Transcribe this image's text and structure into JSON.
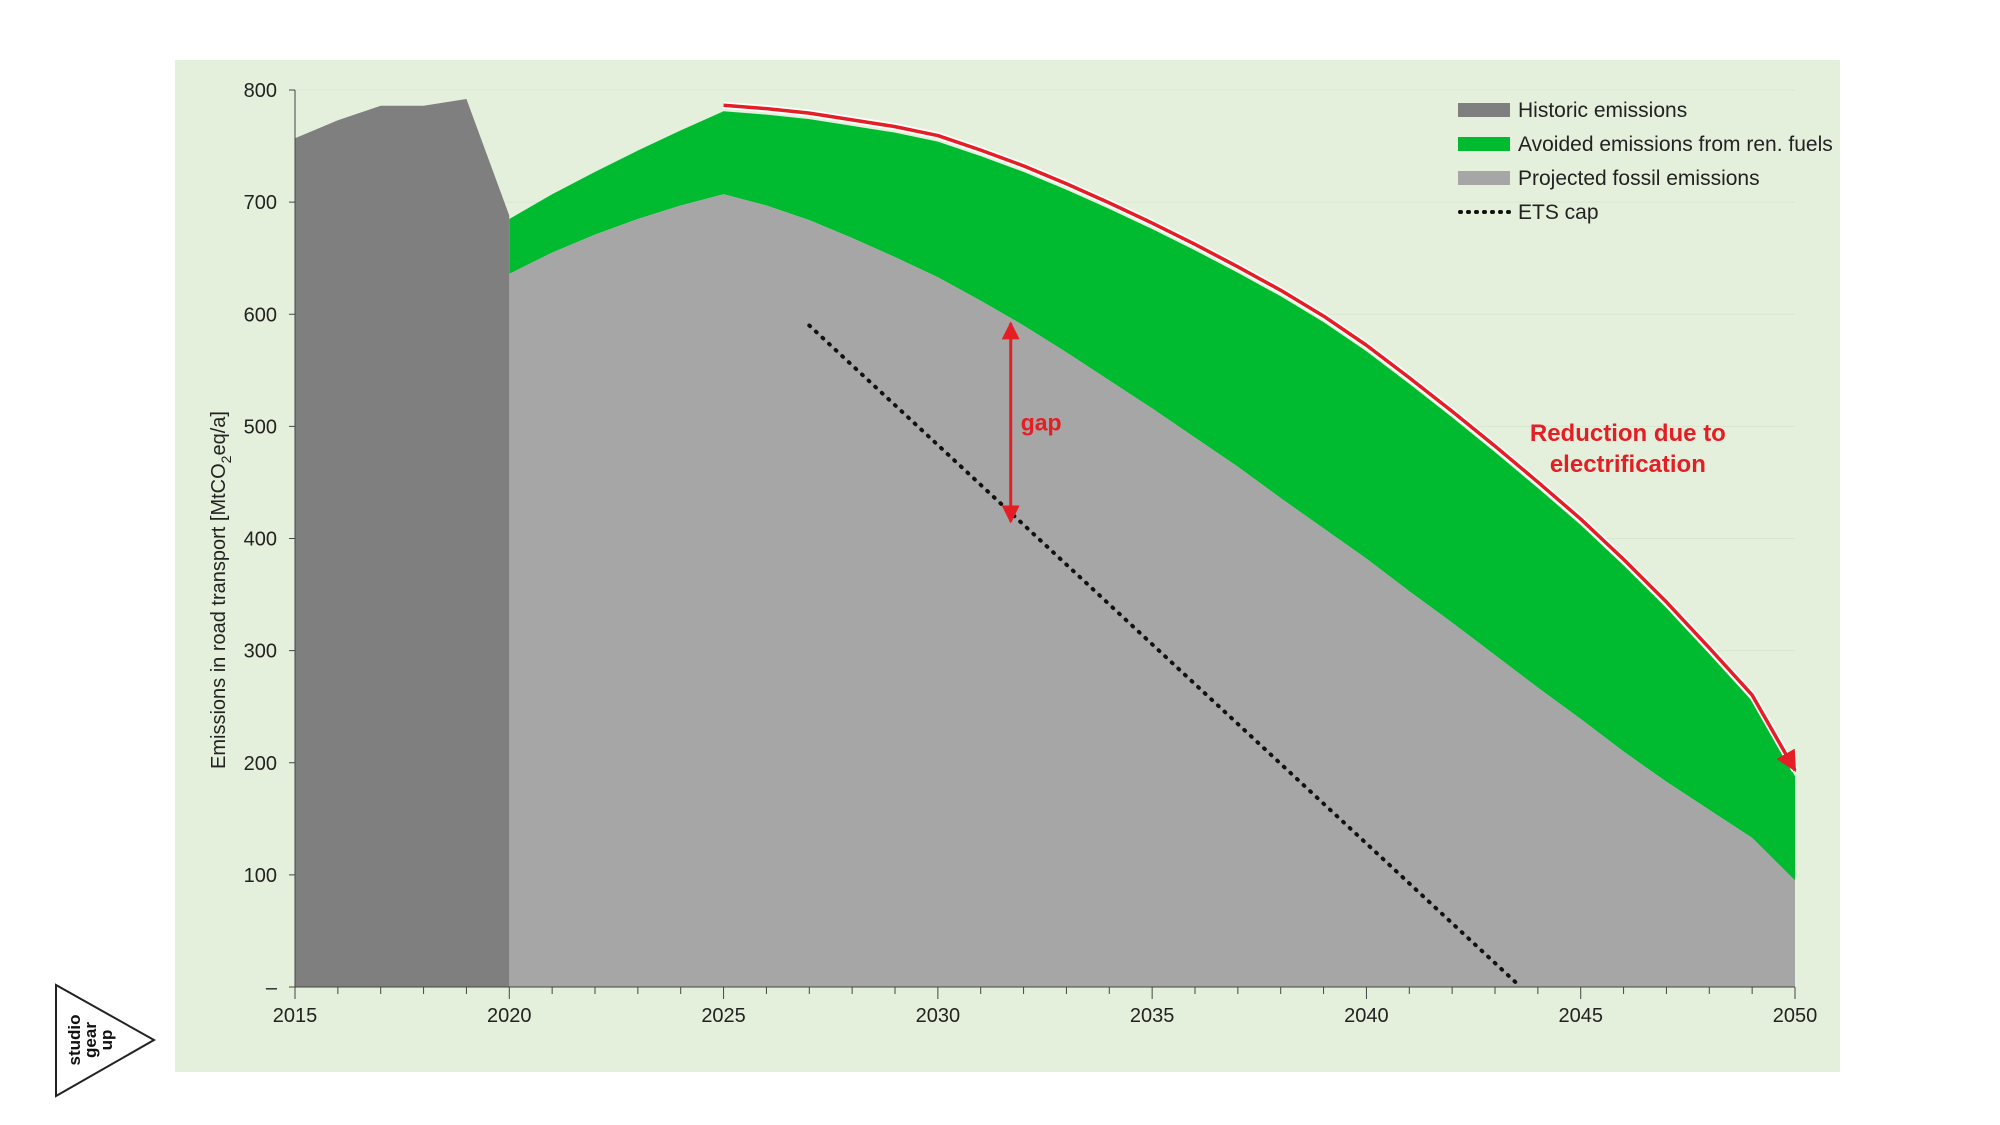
{
  "chart_data": {
    "type": "area",
    "ylabel_parts": [
      "Emissions in road transport [MtCO",
      "2",
      "eq/a]"
    ],
    "xlim": [
      2015,
      2050
    ],
    "ylim": [
      0,
      800
    ],
    "x_ticks": [
      2015,
      2020,
      2025,
      2030,
      2035,
      2040,
      2045,
      2050
    ],
    "y_ticks": [
      {
        "value": 0,
        "label": "–"
      },
      {
        "value": 100,
        "label": "100"
      },
      {
        "value": 200,
        "label": "200"
      },
      {
        "value": 300,
        "label": "300"
      },
      {
        "value": 400,
        "label": "400"
      },
      {
        "value": 500,
        "label": "500"
      },
      {
        "value": 600,
        "label": "600"
      },
      {
        "value": 700,
        "label": "700"
      },
      {
        "value": 800,
        "label": "800"
      }
    ],
    "legend_position": "top-right",
    "legend": [
      {
        "label": "Historic emissions",
        "swatch": "bar",
        "color": "#7f7f7f"
      },
      {
        "label": "Avoided emissions from ren. fuels",
        "swatch": "bar",
        "color": "#00bb2f"
      },
      {
        "label": "Projected fossil emissions",
        "swatch": "bar",
        "color": "#a6a6a6"
      },
      {
        "label": "ETS cap",
        "swatch": "dots",
        "color": "#111111"
      }
    ],
    "series": [
      {
        "name": "Historic emissions",
        "color": "#7f7f7f",
        "x": [
          2015,
          2016,
          2017,
          2018,
          2019,
          2020
        ],
        "y": [
          757,
          773,
          786,
          786,
          792,
          688
        ]
      },
      {
        "name": "Projected fossil emissions",
        "color": "#a6a6a6",
        "x": [
          2020,
          2021,
          2022,
          2023,
          2024,
          2025,
          2026,
          2027,
          2028,
          2029,
          2030,
          2031,
          2032,
          2033,
          2034,
          2035,
          2036,
          2037,
          2038,
          2039,
          2040,
          2041,
          2042,
          2043,
          2044,
          2045,
          2046,
          2047,
          2048,
          2049,
          2050
        ],
        "y": [
          636,
          655,
          671,
          685,
          697,
          707,
          697,
          684,
          668,
          651,
          633,
          612,
          590,
          566,
          541,
          516,
          490,
          464,
          436,
          409,
          382,
          353,
          325,
          296,
          267,
          239,
          210,
          183,
          158,
          133,
          95
        ]
      },
      {
        "name": "Avoided emissions from ren. fuels",
        "color": "#00bb2f",
        "x": [
          2020,
          2021,
          2022,
          2023,
          2024,
          2025,
          2026,
          2027,
          2028,
          2029,
          2030,
          2031,
          2032,
          2033,
          2034,
          2035,
          2036,
          2037,
          2038,
          2039,
          2040,
          2041,
          2042,
          2043,
          2044,
          2045,
          2046,
          2047,
          2048,
          2049,
          2050
        ],
        "y_top": [
          685,
          707,
          727,
          746,
          764,
          781,
          778,
          774,
          768,
          762,
          754,
          741,
          727,
          711,
          694,
          676,
          657,
          637,
          616,
          593,
          567,
          538,
          508,
          477,
          445,
          412,
          376,
          338,
          297,
          255,
          188
        ]
      },
      {
        "name": "ETS cap",
        "color": "#111111",
        "style": "dotted",
        "x": [
          2027,
          2043.6
        ],
        "y": [
          590,
          0
        ]
      }
    ],
    "annotations": [
      {
        "text": "gap",
        "color": "#e31e24",
        "x": 2031.7,
        "y_from": 415,
        "y_to": 592
      },
      {
        "text_lines": [
          "Reduction due to",
          "electrification"
        ],
        "color": "#e31e24",
        "x": 2046.1,
        "y": 487
      },
      {
        "type": "reduction-arrow",
        "color": "#e31e24",
        "from_x": 2025,
        "to_x": 2050
      }
    ]
  },
  "logo": {
    "lines": [
      "studio",
      "gear",
      "up"
    ]
  }
}
